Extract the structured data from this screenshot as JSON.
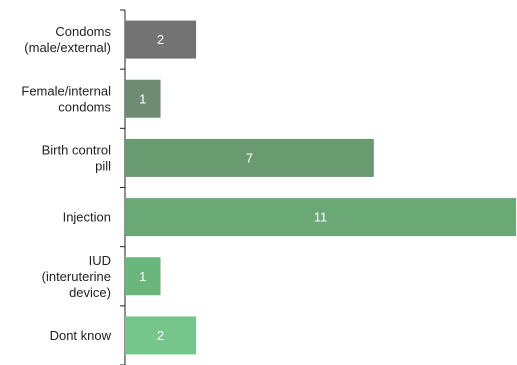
{
  "chart_data": {
    "type": "bar",
    "orientation": "horizontal",
    "title": "",
    "xlabel": "",
    "ylabel": "",
    "xlim": [
      0,
      11
    ],
    "grid": false,
    "legend": "none",
    "categories": [
      [
        "Condoms",
        "(male/external)"
      ],
      [
        "Female/internal",
        "condoms"
      ],
      [
        "Birth control",
        "pill"
      ],
      [
        "Injection"
      ],
      [
        "IUD",
        "(interuterine",
        "device)"
      ],
      [
        "Dont know"
      ]
    ],
    "values": [
      2,
      1,
      7,
      11,
      1,
      2
    ],
    "colors": [
      "#737373",
      "#6f8c73",
      "#6a9a70",
      "#6aa876",
      "#6bb67d",
      "#76c58a"
    ],
    "data_labels": [
      "2",
      "1",
      "7",
      "11",
      "1",
      "2"
    ]
  }
}
